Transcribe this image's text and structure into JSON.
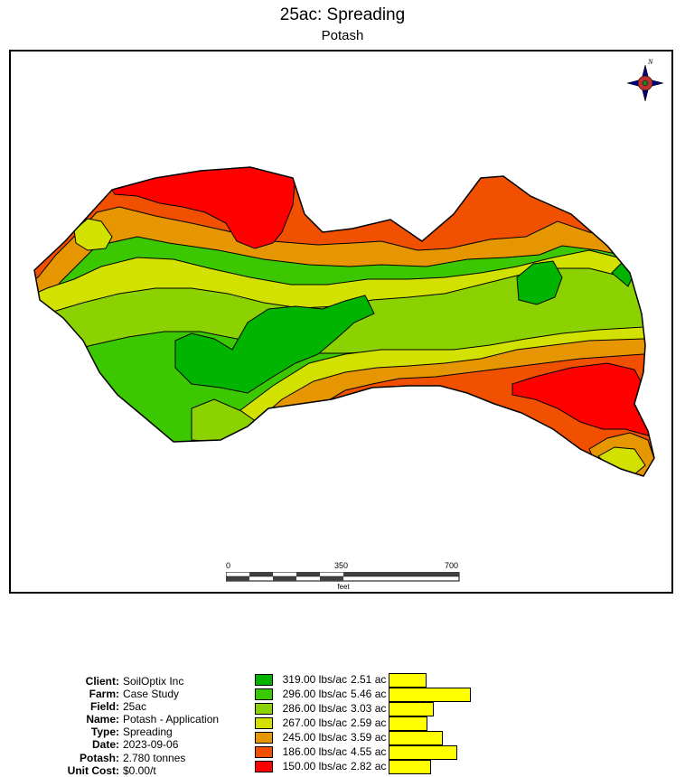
{
  "map": {
    "title": "25ac: Spreading",
    "subtitle": "Potash",
    "north_arrow_icon": "compass-rose-icon",
    "scale": {
      "labels": [
        "0",
        "350",
        "700"
      ],
      "unit": "feet"
    },
    "zone_colors": {
      "z319": "#00b400",
      "z296": "#3cc800",
      "z286": "#8cd200",
      "z267": "#d2e100",
      "z245": "#e69600",
      "z186": "#f05000",
      "z150": "#ff0000"
    }
  },
  "info": [
    {
      "key": "Client:",
      "value": "SoilOptix Inc"
    },
    {
      "key": "Farm:",
      "value": "Case Study"
    },
    {
      "key": "Field:",
      "value": "25ac"
    },
    {
      "key": "Name:",
      "value": "Potash - Application"
    },
    {
      "key": "Type:",
      "value": "Spreading"
    },
    {
      "key": "Date:",
      "value": "2023-09-06"
    },
    {
      "key": "Potash:",
      "value": "2.780 tonnes"
    },
    {
      "key": "Unit Cost:",
      "value": "$0.00/t"
    }
  ],
  "legend": [
    {
      "rate": "319.00 lbs/ac",
      "area": "2.51 ac",
      "acres": 2.51,
      "color": "#00b400"
    },
    {
      "rate": "296.00 lbs/ac",
      "area": "5.46 ac",
      "acres": 5.46,
      "color": "#3cc800"
    },
    {
      "rate": "286.00 lbs/ac",
      "area": "3.03 ac",
      "acres": 3.03,
      "color": "#8cd200"
    },
    {
      "rate": "267.00 lbs/ac",
      "area": "2.59 ac",
      "acres": 2.59,
      "color": "#d2e100"
    },
    {
      "rate": "245.00 lbs/ac",
      "area": "3.59 ac",
      "acres": 3.59,
      "color": "#e69600"
    },
    {
      "rate": "186.00 lbs/ac",
      "area": "4.55 ac",
      "acres": 4.55,
      "color": "#f05000"
    },
    {
      "rate": "150.00 lbs/ac",
      "area": "2.82 ac",
      "acres": 2.82,
      "color": "#ff0000"
    }
  ]
}
